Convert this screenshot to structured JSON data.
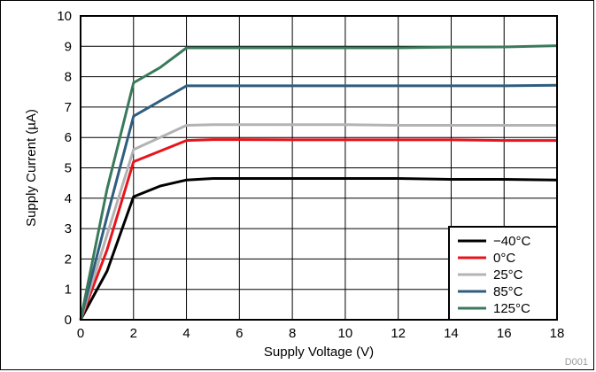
{
  "figure_id": "D001",
  "chart_data": {
    "type": "line",
    "title": "",
    "xlabel": "Supply Voltage (V)",
    "ylabel": "Supply Current (µA)",
    "xlim": [
      0,
      18
    ],
    "ylim": [
      0,
      10
    ],
    "x_ticks": [
      "0",
      "2",
      "4",
      "6",
      "8",
      "10",
      "12",
      "14",
      "16",
      "18"
    ],
    "y_ticks": [
      "0",
      "1",
      "2",
      "3",
      "4",
      "5",
      "6",
      "7",
      "8",
      "9",
      "10"
    ],
    "grid": true,
    "legend_position": "bottom-right",
    "x": [
      0,
      1,
      2,
      3,
      4,
      5,
      6,
      8,
      10,
      12,
      14,
      16,
      18
    ],
    "series": [
      {
        "name": "−40°C",
        "color": "#000000",
        "values": [
          0,
          1.6,
          4.05,
          4.4,
          4.6,
          4.65,
          4.65,
          4.65,
          4.65,
          4.65,
          4.62,
          4.62,
          4.6
        ]
      },
      {
        "name": "0°C",
        "color": "#e8141b",
        "values": [
          0,
          2.3,
          5.2,
          5.55,
          5.9,
          5.93,
          5.93,
          5.92,
          5.92,
          5.92,
          5.92,
          5.9,
          5.9
        ]
      },
      {
        "name": "25°C",
        "color": "#b3b3b3",
        "values": [
          0,
          2.8,
          5.6,
          6.0,
          6.4,
          6.42,
          6.42,
          6.42,
          6.42,
          6.4,
          6.4,
          6.4,
          6.4
        ]
      },
      {
        "name": "85°C",
        "color": "#2f5d7f",
        "values": [
          0,
          3.4,
          6.7,
          7.2,
          7.7,
          7.7,
          7.7,
          7.7,
          7.7,
          7.7,
          7.7,
          7.7,
          7.72
        ]
      },
      {
        "name": "125°C",
        "color": "#3a7a5b",
        "values": [
          0,
          4.3,
          7.8,
          8.3,
          8.95,
          8.95,
          8.95,
          8.95,
          8.95,
          8.95,
          8.97,
          8.98,
          9.02
        ]
      }
    ]
  }
}
